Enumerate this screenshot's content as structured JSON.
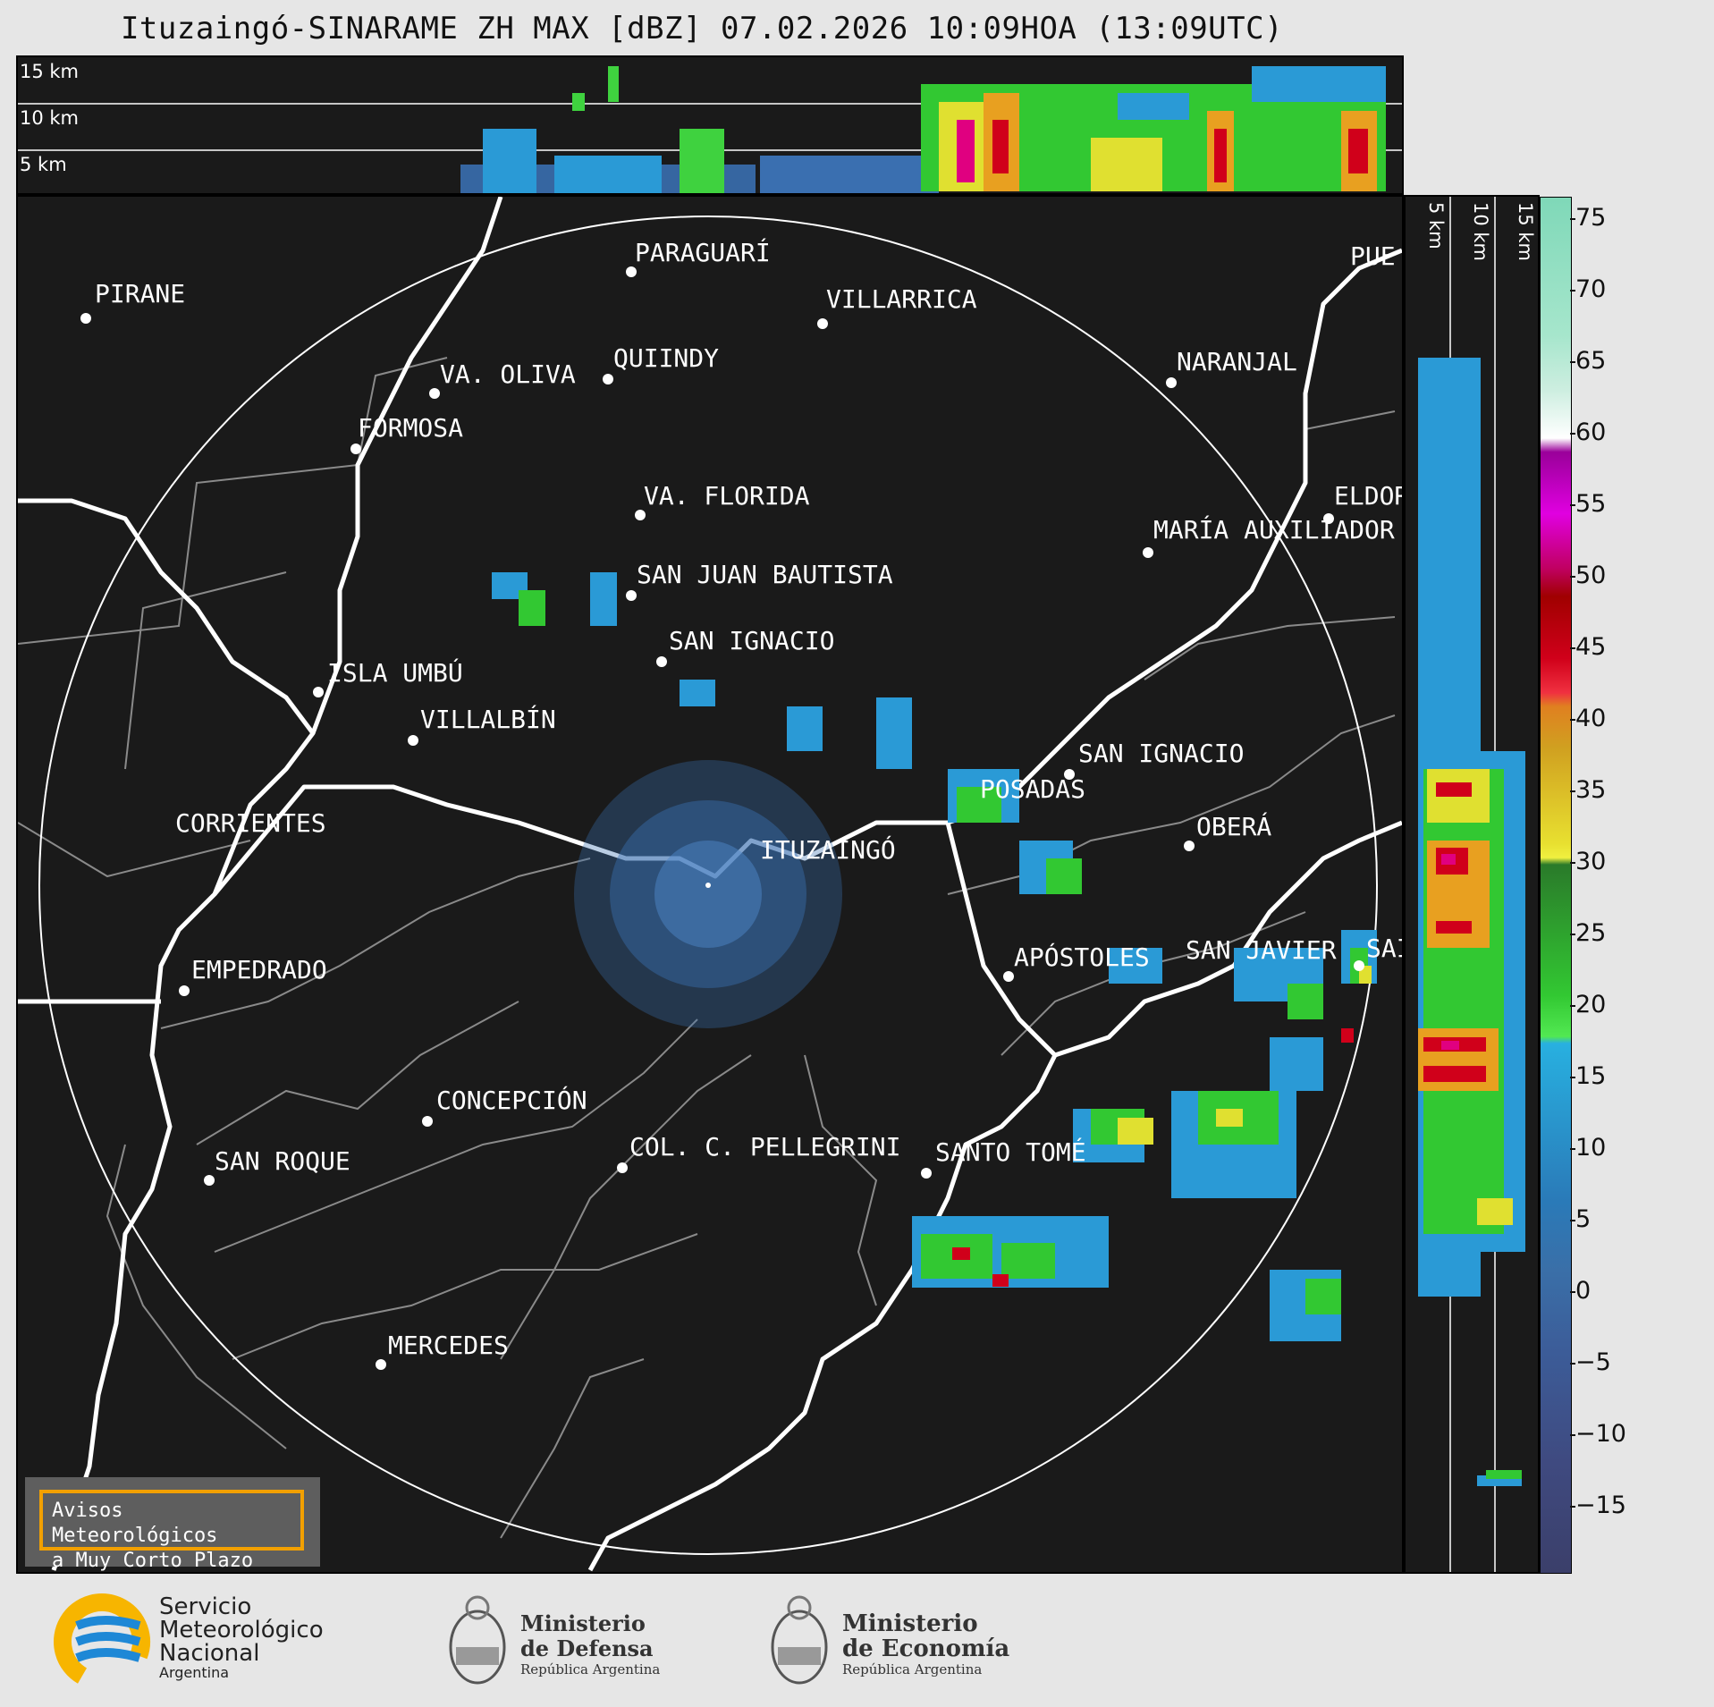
{
  "title": "Ituzaingó-SINARAME ZH MAX [dBZ] 07.02.2026 10:09HOA (13:09UTC)",
  "height_labels": [
    "15 km",
    "10 km",
    "5 km"
  ],
  "cities": [
    {
      "name": "PIRANE"
    },
    {
      "name": "PARAGUARÍ"
    },
    {
      "name": "VILLARRICA"
    },
    {
      "name": "QUIINDY"
    },
    {
      "name": "VA. OLIVA"
    },
    {
      "name": "FORMOSA"
    },
    {
      "name": "NARANJAL"
    },
    {
      "name": "VA. FLORIDA"
    },
    {
      "name": "ELDOR"
    },
    {
      "name": "MARÍA AUXILIADOR"
    },
    {
      "name": "SAN JUAN BAUTISTA"
    },
    {
      "name": "SAN IGNACIO"
    },
    {
      "name": "ISLA UMBÚ"
    },
    {
      "name": "VILLALBÍN"
    },
    {
      "name": "SAN IGNACIO"
    },
    {
      "name": "POSADAS"
    },
    {
      "name": "CORRIENTES"
    },
    {
      "name": "ITUZAINGÓ"
    },
    {
      "name": "OBERÁ"
    },
    {
      "name": "APÓSTOLES"
    },
    {
      "name": "SAN JAVIER"
    },
    {
      "name": "SAI"
    },
    {
      "name": "EMPEDRADO"
    },
    {
      "name": "CONCEPCIÓN"
    },
    {
      "name": "COL. C. PELLEGRINI"
    },
    {
      "name": "SANTO TOMÉ"
    },
    {
      "name": "SAN ROQUE"
    },
    {
      "name": "MERCEDES"
    },
    {
      "name": "PUE"
    }
  ],
  "colorbar": {
    "ticks": [
      "75",
      "70",
      "65",
      "60",
      "55",
      "50",
      "45",
      "40",
      "35",
      "30",
      "25",
      "20",
      "15",
      "10",
      "5",
      "0",
      "−5",
      "−10",
      "−15"
    ]
  },
  "warning_box": {
    "line1": "Avisos Meteorológicos",
    "line2": "a Muy Corto Plazo"
  },
  "logos": {
    "smn": {
      "line1": "Servicio",
      "line2": "Meteorológico",
      "line3": "Nacional",
      "line4": "Argentina"
    },
    "defensa": {
      "line1": "Ministerio",
      "line2": "de Defensa",
      "line3": "República Argentina"
    },
    "economia": {
      "line1": "Ministerio",
      "line2": "de Economía",
      "line3": "República Argentina"
    }
  },
  "colors": {
    "background": "#1a1a1a",
    "range_ring": "#ffffff",
    "warning_border": "#f2a000",
    "smn_blue": "#1e88d6",
    "smn_yellow": "#f7b500"
  }
}
